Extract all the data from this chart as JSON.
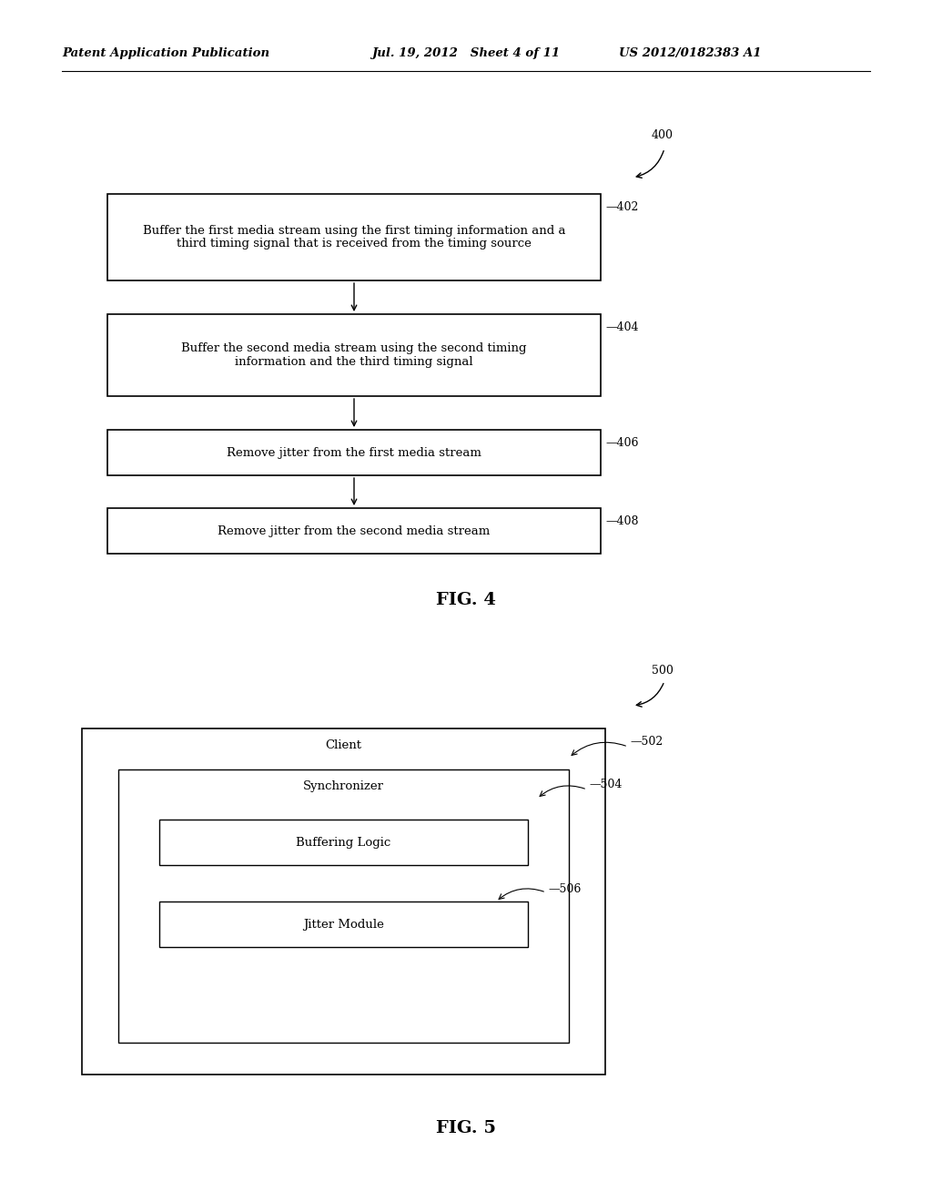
{
  "background_color": "#ffffff",
  "header_left": "Patent Application Publication",
  "header_center": "Jul. 19, 2012   Sheet 4 of 11",
  "header_right": "US 2012/0182383 A1",
  "fig4_label": "FIG. 4",
  "fig5_label": "FIG. 5",
  "fig4_ref": "400",
  "fig5_ref": "500",
  "boxes_fig4": [
    {
      "text": "Buffer the first media stream using the first timing information and a\nthird timing signal that is received from the timing source",
      "label": "402"
    },
    {
      "text": "Buffer the second media stream using the second timing\ninformation and the third timing signal",
      "label": "404"
    },
    {
      "text": "Remove jitter from the first media stream",
      "label": "406"
    },
    {
      "text": "Remove jitter from the second media stream",
      "label": "408"
    }
  ],
  "fig5_client_label": "Client",
  "fig5_client_ref": "502",
  "fig5_sync_label": "Synchronizer",
  "fig5_buf_label": "Buffering Logic",
  "fig5_buf_ref": "504",
  "fig5_jit_label": "Jitter Module",
  "fig5_jit_ref": "506"
}
